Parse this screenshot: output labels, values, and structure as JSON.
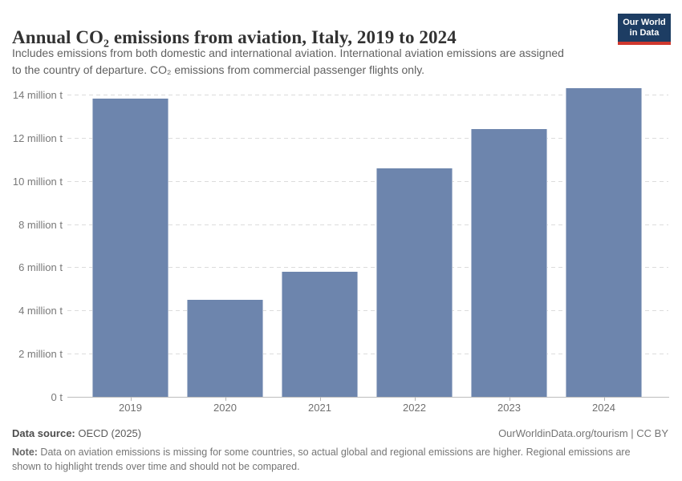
{
  "header": {
    "title": "Annual CO₂ emissions from aviation, Italy, 2019 to 2024",
    "subtitle_line1": "Includes emissions from both domestic and international aviation. International aviation emissions are assigned",
    "subtitle_line2": "to the country of departure. CO₂ emissions from commercial passenger flights only.",
    "logo_line1": "Our World",
    "logo_line2": "in Data",
    "logo_bg_color": "#1d3d63",
    "logo_accent_color": "#d0382e"
  },
  "chart_data": {
    "type": "bar",
    "categories": [
      "2019",
      "2020",
      "2021",
      "2022",
      "2023",
      "2024"
    ],
    "values": [
      13.8,
      4.5,
      5.8,
      10.6,
      12.4,
      14.3
    ],
    "title": "Annual CO₂ emissions from aviation, Italy, 2019 to 2024",
    "xlabel": "",
    "ylabel": "",
    "unit": "million t",
    "ylim": [
      0,
      14.3
    ],
    "yticks": [
      0,
      2,
      4,
      6,
      8,
      10,
      12,
      14
    ],
    "ytick_labels": [
      "0 t",
      "2 million t",
      "4 million t",
      "6 million t",
      "8 million t",
      "10 million t",
      "12 million t",
      "14 million t"
    ],
    "grid": "horizontal-dashed",
    "legend": "none",
    "bar_color": "#6d85ad"
  },
  "footer": {
    "source_label": "Data source:",
    "source_value": " OECD (2025)",
    "link": "OurWorldinData.org/tourism | CC BY",
    "note_label": "Note:",
    "note_line1": " Data on aviation emissions is missing for some countries, so actual global and regional emissions are higher. Regional emissions are",
    "note_line2": "shown to highlight trends over time and should not be compared."
  }
}
